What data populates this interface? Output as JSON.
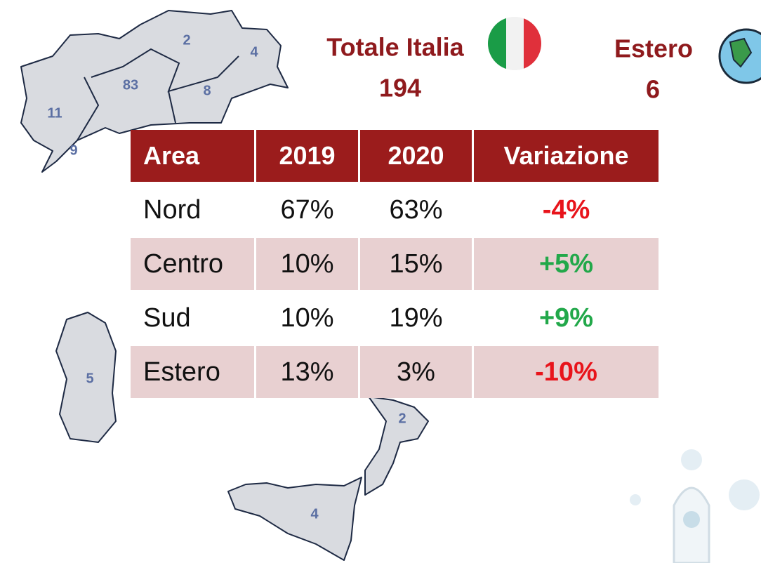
{
  "map": {
    "labels": [
      2,
      4,
      83,
      8,
      11,
      9,
      5,
      2,
      4
    ]
  },
  "totals": [
    {
      "label": "Totale Italia",
      "value": 194
    },
    {
      "label": "Estero",
      "value": 6
    }
  ],
  "table": {
    "header": [
      "Area",
      "2019",
      "2020",
      "Variazione"
    ],
    "rows": [
      [
        "Nord",
        "67%",
        "63%",
        "-4%"
      ],
      [
        "Centro",
        "10%",
        "15%",
        "+5%"
      ],
      [
        "Sud",
        "10%",
        "19%",
        "+9%"
      ],
      [
        "Estero",
        "13%",
        "3%",
        "-10%"
      ]
    ]
  }
}
